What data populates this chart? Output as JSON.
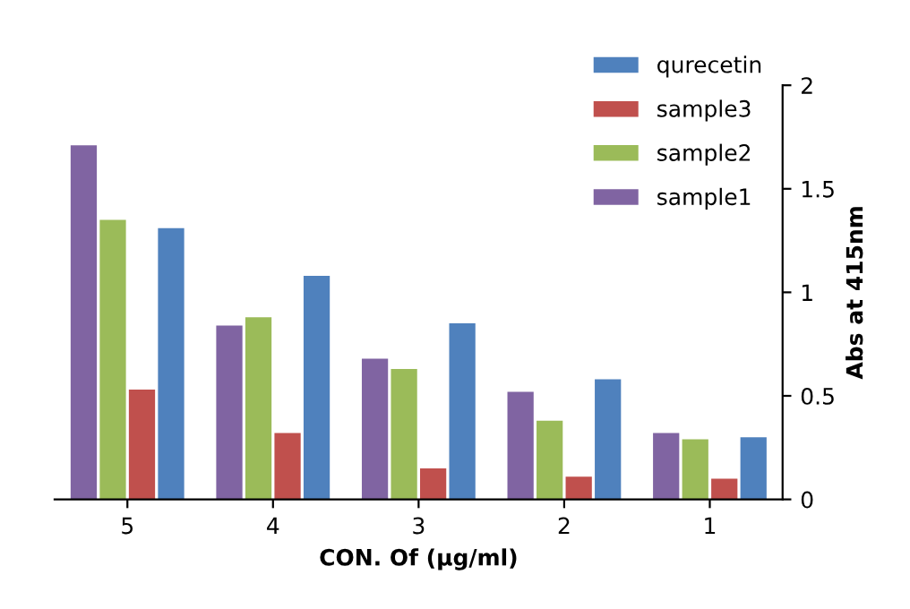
{
  "chart_data": {
    "type": "bar",
    "xlabel": "CON. Of (µg/ml)",
    "ylabel": "Abs at 415nm",
    "categories": [
      "5",
      "4",
      "3",
      "2",
      "1"
    ],
    "series": [
      {
        "name": "sample1",
        "color": "#8064a2",
        "values": [
          1.71,
          0.84,
          0.68,
          0.52,
          0.32
        ]
      },
      {
        "name": "sample2",
        "color": "#9bbb59",
        "values": [
          1.35,
          0.88,
          0.63,
          0.38,
          0.29
        ]
      },
      {
        "name": "sample3",
        "color": "#c0504d",
        "values": [
          0.53,
          0.32,
          0.15,
          0.11,
          0.1
        ]
      },
      {
        "name": "qurecetin",
        "color": "#4f81bd",
        "values": [
          1.31,
          1.08,
          0.85,
          0.58,
          0.3
        ]
      }
    ],
    "ylim": [
      0,
      2
    ],
    "yticks": [
      0,
      0.5,
      1,
      1.5,
      2
    ],
    "grid": false,
    "legend": "top right"
  }
}
